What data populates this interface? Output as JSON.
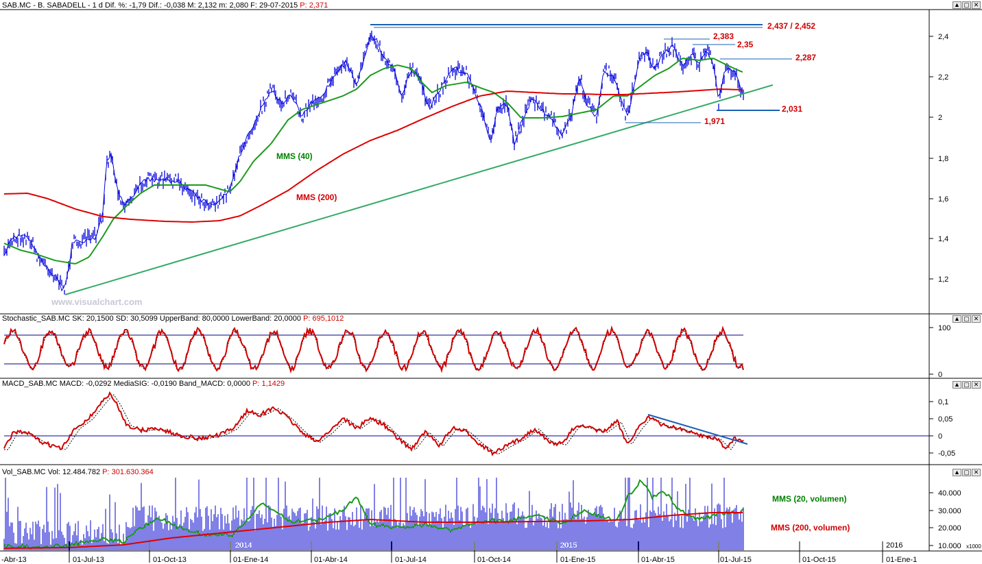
{
  "headers": {
    "price": {
      "prefix": "SAB.MC - B. SABADELL - 1 d  Dif. %: -1,79  Dif.: -0,038  M: 2,132  m: 2,080  F: 29-07-2015 ",
      "p": "P: 2,371"
    },
    "stoch": {
      "prefix": "Stochastic_SAB.MC  SK: 20,1500  SD: 30,5099  UpperBand: 80,0000  LowerBand: 20,0000 ",
      "p": "P: 695,1012"
    },
    "macd": {
      "prefix": "MACD_SAB.MC  MACD: -0,0292  MediaSIG: -0,0190  Band_MACD: 0,0000 ",
      "p": "P: 1,1429"
    },
    "vol": {
      "prefix": "Vol_SAB.MC  Vol: 12.484.782 ",
      "p": "P: 301.630.364"
    }
  },
  "window_buttons": [
    "▲",
    "▢",
    "✕"
  ],
  "watermark": "www.visualchart.com",
  "colors": {
    "price": "#0000dd",
    "mms40": "#1a9a1a",
    "mms200": "#dd0000",
    "trend": "#33aa66",
    "red_text": "#d00000"
  },
  "x_axis": {
    "ticks": [
      "-Abr-13",
      "01-Jul-13",
      "01-Oct-13",
      "01-Ene-14",
      "01-Abr-14",
      "01-Jul-14",
      "01-Oct-14",
      "01-Ene-15",
      "01-Abr-15",
      "01-Jul-15",
      "01-Oct-15",
      "01-Ene-1"
    ],
    "year_labels": [
      "2014",
      "2015",
      "2016"
    ]
  },
  "chart_data": [
    {
      "type": "line",
      "title": "SAB.MC - B. SABADELL - 1 d",
      "y_ticks": [
        "2,4",
        "2,2",
        "2",
        "1,8",
        "1,6",
        "1,4",
        "1,2"
      ],
      "ylim": [
        1.05,
        2.47
      ],
      "series": [
        {
          "name": "MMS (40)",
          "values": [
            1.36,
            1.34,
            1.3,
            1.27,
            1.42,
            1.62,
            1.68,
            1.66,
            1.64,
            1.7,
            1.95,
            2.05,
            2.1,
            2.18,
            2.3,
            2.25,
            2.08,
            2.0,
            1.98,
            2.05,
            2.12,
            2.25,
            2.28,
            2.25
          ]
        },
        {
          "name": "MMS (200)",
          "values": [
            1.62,
            1.58,
            1.52,
            1.48,
            1.49,
            1.55,
            1.64,
            1.78,
            1.88,
            1.97,
            2.06,
            2.13,
            2.13,
            2.12,
            2.12,
            2.12,
            2.13,
            2.14
          ]
        }
      ],
      "annotations": [
        "2,437 / 2,452",
        "2,383",
        "2,35",
        "2,287",
        "2,031",
        "1,971",
        "MMS (40)",
        "MMS (200)"
      ]
    },
    {
      "type": "line",
      "title": "Stochastic_SAB.MC",
      "y_ticks": [
        "100",
        "0"
      ],
      "ylim": [
        0,
        100
      ],
      "bands": [
        80,
        20
      ]
    },
    {
      "type": "line",
      "title": "MACD_SAB.MC",
      "y_ticks": [
        "0,1",
        "0,05",
        "0",
        "-0,05"
      ],
      "ylim": [
        -0.09,
        0.14
      ]
    },
    {
      "type": "bar",
      "title": "Vol_SAB.MC",
      "y_ticks": [
        "40.000",
        "30.000",
        "20.000",
        "10.000"
      ],
      "unit_label": "x1000",
      "annotations": [
        "MMS (20, volumen)",
        "MMS (200, volumen)"
      ]
    }
  ],
  "labels": {
    "resistance": "2,437 / 2,452",
    "r2383": "2,383",
    "r235": "2,35",
    "r2287": "2,287",
    "s2031": "2,031",
    "s1971": "1,971",
    "mms40": "MMS (40)",
    "mms200": "MMS (200)",
    "vol_mms20": "MMS (20, volumen)",
    "vol_mms200": "MMS (200, volumen)"
  }
}
